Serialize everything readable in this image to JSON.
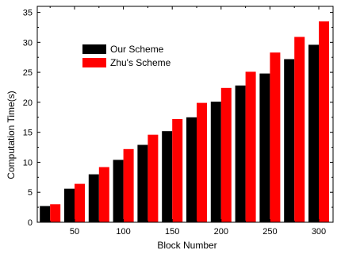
{
  "chart_data": {
    "type": "bar",
    "xlabel": "Block Number",
    "ylabel": "Computation Time(s)",
    "ylim": [
      0,
      36
    ],
    "yticks": [
      0,
      5,
      10,
      15,
      20,
      25,
      30,
      35
    ],
    "x": [
      25,
      50,
      75,
      100,
      125,
      150,
      175,
      200,
      225,
      250,
      275,
      300
    ],
    "xticks": [
      50,
      100,
      150,
      200,
      250,
      300
    ],
    "series": [
      {
        "name": "Our Scheme",
        "color": "#000000",
        "values": [
          2.7,
          5.6,
          8.0,
          10.4,
          12.9,
          15.2,
          17.5,
          20.1,
          22.8,
          24.8,
          27.2,
          29.6
        ]
      },
      {
        "name": "Zhu's Scheme",
        "color": "#ff0000",
        "values": [
          3.0,
          6.4,
          9.2,
          12.2,
          14.6,
          17.2,
          19.9,
          22.4,
          25.1,
          28.3,
          30.9,
          33.5
        ]
      }
    ],
    "legend": "top-left",
    "grid": false
  }
}
